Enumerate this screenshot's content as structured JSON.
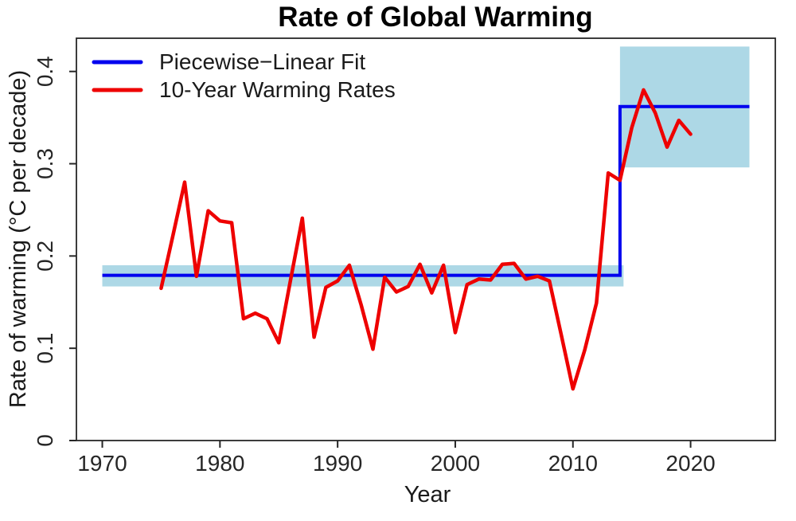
{
  "chart_data": {
    "type": "line",
    "title": "Rate of Global Warming",
    "xlabel": "Year",
    "ylabel": "Rate of warming (°C per decade)",
    "xlim": [
      1967.8,
      2027.2
    ],
    "ylim": [
      0,
      0.436
    ],
    "x_ticks": {
      "values": [
        1970,
        1980,
        1990,
        2000,
        2010,
        2020
      ],
      "labels": [
        "1970",
        "1980",
        "1990",
        "2000",
        "2010",
        "2020"
      ]
    },
    "y_ticks": {
      "values": [
        0,
        0.1,
        0.2,
        0.3,
        0.4
      ],
      "labels": [
        "0",
        "0.1",
        "0.2",
        "0.3",
        "0.4"
      ]
    },
    "grid": false,
    "frame_color": "#262626",
    "legend": {
      "position": "top-left",
      "entries": [
        {
          "label": "Piecewise−Linear Fit",
          "color": "#0000EE"
        },
        {
          "label": "10-Year Warming Rates",
          "color": "#EE0000"
        }
      ]
    },
    "confidence_bands": [
      {
        "x": [
          1970,
          2014.3
        ],
        "y": [
          0.167,
          0.19
        ],
        "color": "#ADD8E6"
      },
      {
        "x": [
          2014,
          2025
        ],
        "y": [
          0.296,
          0.427
        ],
        "color": "#ADD8E6"
      }
    ],
    "series": [
      {
        "name": "Piecewise-Linear Fit",
        "type": "step",
        "color": "#0000EE",
        "points": [
          [
            1970,
            0.179
          ],
          [
            2014,
            0.179
          ],
          [
            2014,
            0.362
          ],
          [
            2025,
            0.362
          ]
        ]
      },
      {
        "name": "10-Year Warming Rates",
        "type": "line",
        "color": "#EE0000",
        "x": [
          1975,
          1976,
          1977,
          1978,
          1979,
          1980,
          1981,
          1982,
          1983,
          1984,
          1985,
          1986,
          1987,
          1988,
          1989,
          1990,
          1991,
          1992,
          1993,
          1994,
          1995,
          1996,
          1997,
          1998,
          1999,
          2000,
          2001,
          2002,
          2003,
          2004,
          2005,
          2006,
          2007,
          2008,
          2009,
          2010,
          2011,
          2012,
          2013,
          2014,
          2015,
          2016,
          2017,
          2018,
          2019,
          2020
        ],
        "values": [
          0.165,
          0.222,
          0.28,
          0.178,
          0.249,
          0.238,
          0.236,
          0.132,
          0.138,
          0.132,
          0.106,
          0.174,
          0.241,
          0.112,
          0.166,
          0.173,
          0.19,
          0.147,
          0.099,
          0.177,
          0.161,
          0.167,
          0.191,
          0.16,
          0.19,
          0.117,
          0.169,
          0.175,
          0.174,
          0.191,
          0.192,
          0.175,
          0.178,
          0.173,
          0.115,
          0.056,
          0.098,
          0.149,
          0.29,
          0.282,
          0.339,
          0.38,
          0.355,
          0.318,
          0.347,
          0.332
        ]
      }
    ]
  }
}
